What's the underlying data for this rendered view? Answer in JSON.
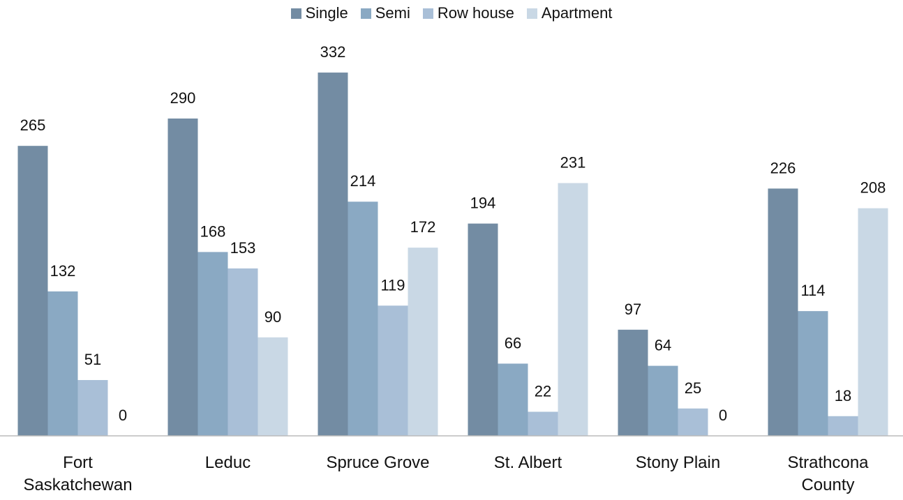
{
  "chart_data": {
    "type": "grouped_bar",
    "categories": [
      "Fort Saskatchewan",
      "Leduc",
      "Spruce Grove",
      "St. Albert",
      "Stony Plain",
      "Strathcona County"
    ],
    "series": [
      {
        "name": "Single",
        "color": "#738ca3",
        "values": [
          265,
          290,
          332,
          194,
          97,
          226
        ]
      },
      {
        "name": "Semi",
        "color": "#8aa9c3",
        "values": [
          132,
          168,
          214,
          66,
          64,
          114
        ]
      },
      {
        "name": "Row house",
        "color": "#a9bfd7",
        "values": [
          51,
          153,
          119,
          22,
          25,
          18
        ]
      },
      {
        "name": "Apartment",
        "color": "#c9d8e5",
        "values": [
          0,
          90,
          172,
          231,
          0,
          208
        ]
      }
    ],
    "ylim": [
      0,
      340
    ],
    "legend": "top"
  }
}
